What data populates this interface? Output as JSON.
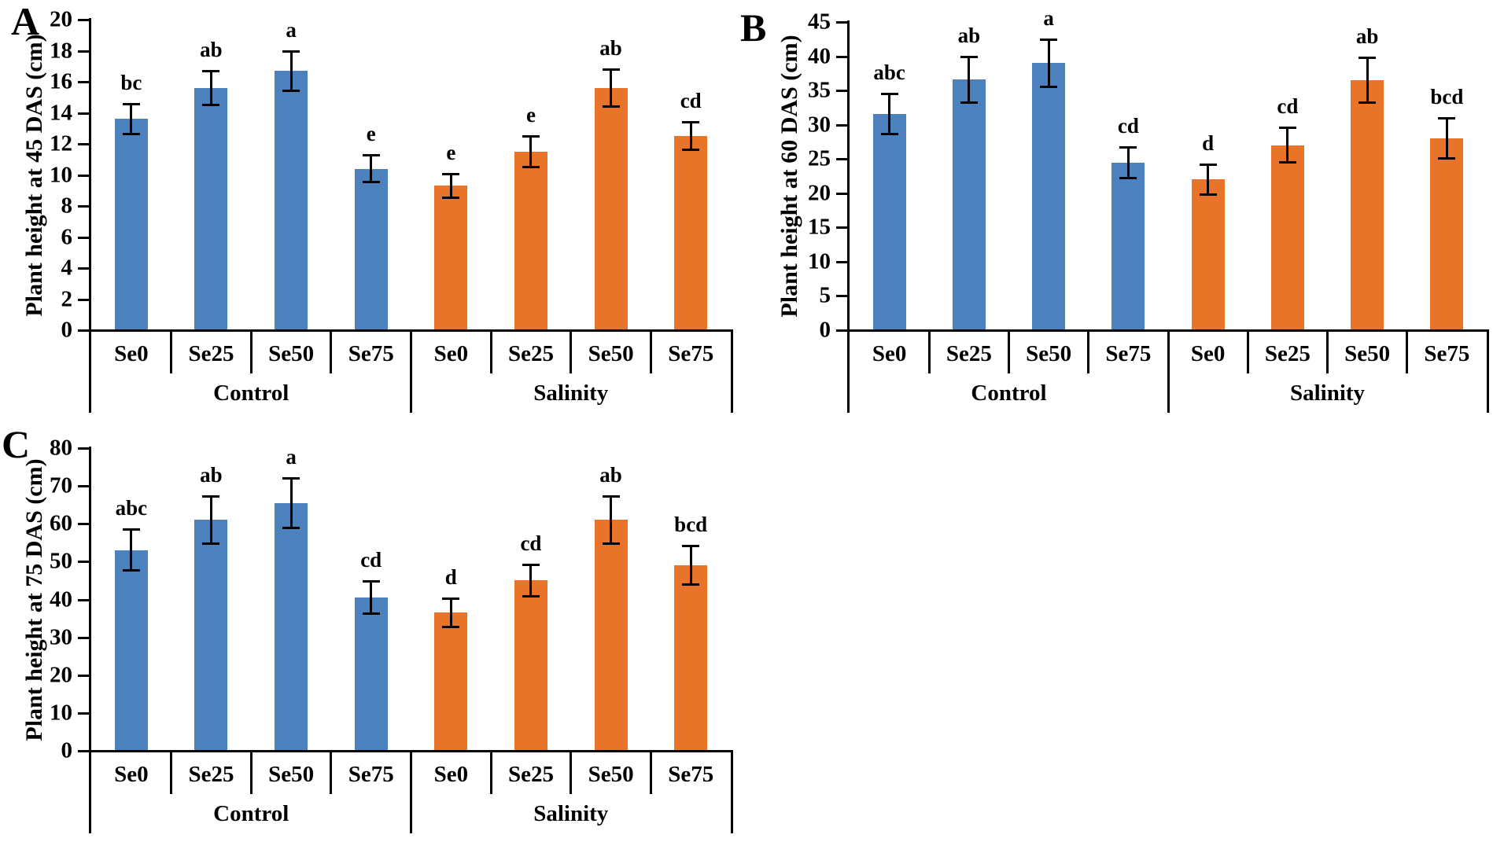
{
  "figure": {
    "panel_labels": [
      "A",
      "B",
      "C"
    ],
    "colors": {
      "control": "#4d81bd",
      "salinity": "#e8742a",
      "line": "#000000"
    }
  },
  "chart_data": [
    {
      "type": "bar",
      "title": "A",
      "ylabel": "Plant height at 45 DAS (cm)",
      "ylim": [
        0,
        20
      ],
      "yticks": [
        0,
        2,
        4,
        6,
        8,
        10,
        12,
        14,
        16,
        18,
        20
      ],
      "grid": false,
      "legend": "none",
      "categories": [
        "Se0",
        "Se25",
        "Se50",
        "Se75",
        "Se0",
        "Se25",
        "Se50",
        "Se75"
      ],
      "group_labels": [
        "Control",
        "Salinity"
      ],
      "series": [
        {
          "name": "Control",
          "color": "#4d81bd",
          "values": [
            13.6,
            15.6,
            16.7,
            10.4
          ],
          "errors": [
            1.0,
            1.1,
            1.3,
            0.9
          ],
          "letters": [
            "bc",
            "ab",
            "a",
            "e"
          ]
        },
        {
          "name": "Salinity",
          "color": "#e8742a",
          "values": [
            9.3,
            11.5,
            15.6,
            12.5
          ],
          "errors": [
            0.8,
            1.0,
            1.2,
            0.9
          ],
          "letters": [
            "e",
            "e",
            "ab",
            "cd"
          ]
        }
      ]
    },
    {
      "type": "bar",
      "title": "B",
      "ylabel": "Plant height at 60 DAS (cm)",
      "ylim": [
        0,
        45
      ],
      "yticks": [
        0,
        5,
        10,
        15,
        20,
        25,
        30,
        35,
        40,
        45
      ],
      "grid": false,
      "legend": "none",
      "categories": [
        "Se0",
        "Se25",
        "Se50",
        "Se75",
        "Se0",
        "Se25",
        "Se50",
        "Se75"
      ],
      "group_labels": [
        "Control",
        "Salinity"
      ],
      "series": [
        {
          "name": "Control",
          "color": "#4d81bd",
          "values": [
            31.6,
            36.6,
            39.0,
            24.5
          ],
          "errors": [
            3.0,
            3.4,
            3.5,
            2.3
          ],
          "letters": [
            "abc",
            "ab",
            "a",
            "cd"
          ]
        },
        {
          "name": "Salinity",
          "color": "#e8742a",
          "values": [
            22.0,
            27.0,
            36.5,
            28.0
          ],
          "errors": [
            2.2,
            2.6,
            3.3,
            3.0
          ],
          "letters": [
            "d",
            "cd",
            "ab",
            "bcd"
          ]
        }
      ]
    },
    {
      "type": "bar",
      "title": "C",
      "ylabel": "Plant height at 75 DAS (cm)",
      "ylim": [
        0,
        80
      ],
      "yticks": [
        0,
        10,
        20,
        30,
        40,
        50,
        60,
        70,
        80
      ],
      "grid": false,
      "legend": "none",
      "categories": [
        "Se0",
        "Se25",
        "Se50",
        "Se75",
        "Se0",
        "Se25",
        "Se50",
        "Se75"
      ],
      "group_labels": [
        "Control",
        "Salinity"
      ],
      "series": [
        {
          "name": "Control",
          "color": "#4d81bd",
          "values": [
            53.0,
            61.0,
            65.5,
            40.5
          ],
          "errors": [
            5.5,
            6.3,
            6.7,
            4.3
          ],
          "letters": [
            "abc",
            "ab",
            "a",
            "cd"
          ]
        },
        {
          "name": "Salinity",
          "color": "#e8742a",
          "values": [
            36.5,
            45.0,
            61.0,
            49.0
          ],
          "errors": [
            3.8,
            4.3,
            6.4,
            5.2
          ],
          "letters": [
            "d",
            "cd",
            "ab",
            "bcd"
          ]
        }
      ]
    }
  ]
}
